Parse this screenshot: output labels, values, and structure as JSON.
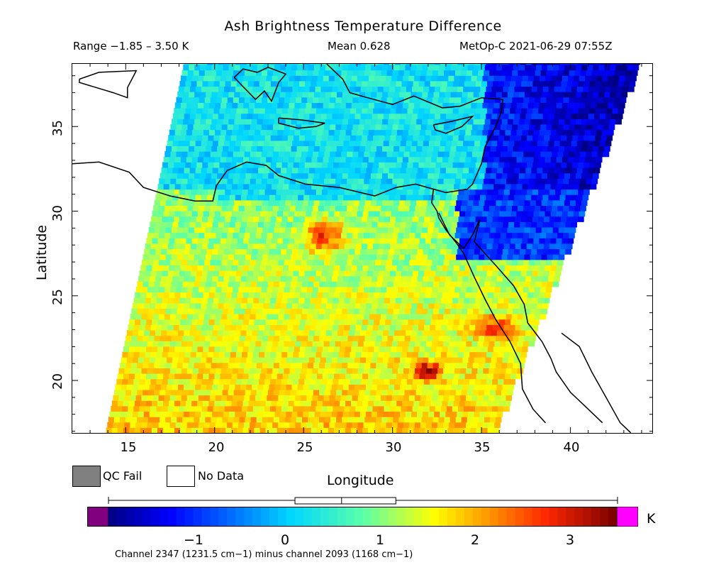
{
  "header": {
    "title": "Ash Brightness Temperature Difference",
    "range": "Range −1.85 – 3.50 K",
    "mean": "Mean 0.628",
    "source": "MetOp-C 2021-06-29 07:55Z"
  },
  "axes": {
    "xlabel": "Longitude",
    "ylabel": "Latitude",
    "xticks": [
      "15",
      "20",
      "25",
      "30",
      "35",
      "40"
    ],
    "yticks": [
      "35",
      "30",
      "25",
      "20"
    ],
    "lon_range": [
      12.0,
      44.6
    ],
    "lat_range": [
      16.9,
      38.7
    ]
  },
  "legend": {
    "qc_fail_label": "QC Fail",
    "qc_fail_color": "#808080",
    "no_data_label": "No Data",
    "no_data_color": "#ffffff"
  },
  "colorbar": {
    "unit": "K",
    "ticks": [
      "−1",
      "0",
      "1",
      "2",
      "3"
    ],
    "range": [
      -1.85,
      3.5
    ],
    "under_color": "#800080",
    "over_color": "#ff00ff",
    "stats_box": {
      "min": -1.85,
      "q1": 0.11,
      "median": 0.6,
      "q3": 1.17,
      "max": 3.5
    }
  },
  "footnote": "Channel 2347 (1231.5 cm−1) minus channel 2093 (1168 cm−1)",
  "map_data": {
    "coastline_color": "#000000",
    "regions": {
      "mediterranean_sea": "mean ≈ 0.3 K",
      "levant_east": "≈ −1.3 K",
      "libya_egypt_plume": "≈ 2.4 K",
      "hot_spots": "≈ 3.0 K"
    }
  }
}
